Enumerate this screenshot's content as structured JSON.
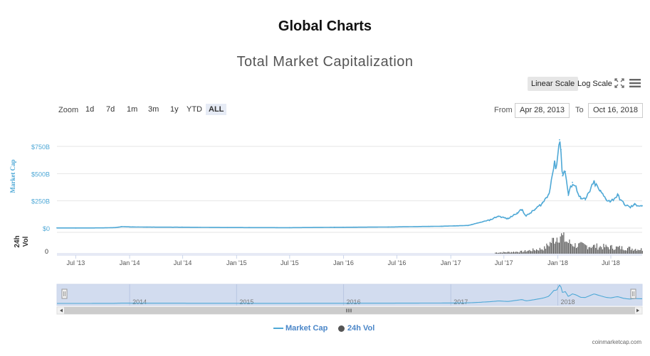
{
  "page": {
    "title": "Global Charts"
  },
  "chart_title": "Total Market Capitalization",
  "toolbar": {
    "linear_label": "Linear Scale",
    "log_label": "Log Scale",
    "fullscreen_icon": "fullscreen-icon",
    "menu_icon": "hamburger-menu-icon"
  },
  "zoom": {
    "label": "Zoom",
    "buttons": [
      "1d",
      "7d",
      "1m",
      "3m",
      "1y",
      "YTD",
      "ALL"
    ],
    "active": "ALL"
  },
  "range": {
    "from_label": "From",
    "from_value": "Apr 28, 2013",
    "to_label": "To",
    "to_value": "Oct 16, 2018"
  },
  "colors": {
    "market_cap": "#4ea8d6",
    "volume": "#555555",
    "navigator_bg": "#d2dcef",
    "active_scale": "#e6e6e6"
  },
  "credit": "coinmarketcap.com",
  "chart_data": {
    "type": "line",
    "title": "Total Market Capitalization",
    "x_range": [
      "2013-04-28",
      "2018-10-16"
    ],
    "x_tick_labels": [
      "Jul '13",
      "Jan '14",
      "Jul '14",
      "Jan '15",
      "Jul '15",
      "Jan '16",
      "Jul '16",
      "Jan '17",
      "Jul '17",
      "Jan '18",
      "Jul '18"
    ],
    "y_axis_market_cap": {
      "label": "Market Cap",
      "ticks": [
        "$0",
        "$250B",
        "$500B",
        "$750B"
      ],
      "ylim": [
        0,
        750
      ]
    },
    "y_axis_volume": {
      "label": "24h Vol",
      "ticks": [
        "0"
      ]
    },
    "navigator_year_labels": [
      "2014",
      "2015",
      "2016",
      "2017",
      "2018"
    ],
    "legend": [
      "Market Cap",
      "24h Vol"
    ],
    "legend_position": "bottom-center",
    "grid": true,
    "series": [
      {
        "name": "Market Cap",
        "unit": "billion USD",
        "x": [
          "2013-04-28",
          "2013-07-01",
          "2013-10-01",
          "2013-11-15",
          "2013-12-05",
          "2014-01-01",
          "2014-03-01",
          "2014-07-01",
          "2014-12-01",
          "2015-01-15",
          "2015-07-01",
          "2015-12-01",
          "2016-06-01",
          "2016-12-01",
          "2017-03-01",
          "2017-05-15",
          "2017-06-12",
          "2017-07-15",
          "2017-08-15",
          "2017-09-01",
          "2017-09-15",
          "2017-10-15",
          "2017-11-10",
          "2017-12-01",
          "2017-12-20",
          "2017-12-27",
          "2018-01-07",
          "2018-01-12",
          "2018-01-17",
          "2018-01-27",
          "2018-02-06",
          "2018-02-20",
          "2018-03-05",
          "2018-03-20",
          "2018-04-05",
          "2018-05-05",
          "2018-05-25",
          "2018-06-15",
          "2018-07-01",
          "2018-07-24",
          "2018-08-15",
          "2018-09-05",
          "2018-09-20",
          "2018-10-16"
        ],
        "values": [
          1.5,
          1.2,
          1.8,
          5,
          13,
          11,
          9,
          8,
          5,
          5,
          4,
          7,
          10,
          17,
          24,
          75,
          110,
          85,
          140,
          170,
          110,
          170,
          230,
          310,
          590,
          560,
          810,
          720,
          480,
          520,
          300,
          420,
          370,
          270,
          260,
          420,
          340,
          265,
          245,
          300,
          220,
          190,
          215,
          205
        ]
      },
      {
        "name": "24h Vol",
        "unit": "relative",
        "x": [
          "2017-06-01",
          "2017-09-01",
          "2017-11-15",
          "2017-12-20",
          "2018-01-07",
          "2018-02-01",
          "2018-03-01",
          "2018-05-01",
          "2018-07-01",
          "2018-09-01",
          "2018-10-16"
        ],
        "values": [
          0.05,
          0.1,
          0.25,
          0.7,
          0.9,
          0.55,
          0.4,
          0.35,
          0.3,
          0.25,
          0.2
        ]
      }
    ]
  }
}
